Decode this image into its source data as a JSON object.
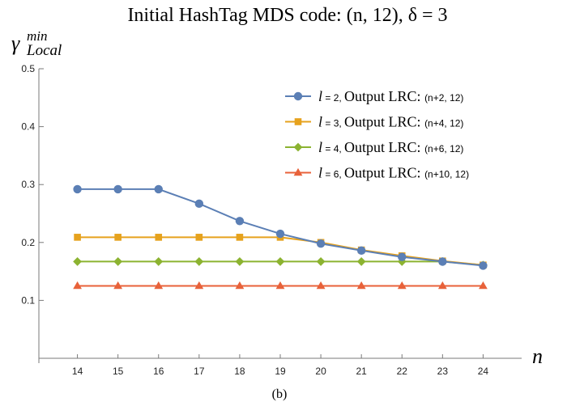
{
  "chart_data": {
    "type": "line",
    "title": "Initial HashTag MDS code: (n, 12), δ = 3",
    "ylabel": "γ",
    "ylabel_sup": "min",
    "ylabel_sub": "Local",
    "xlabel": "n",
    "caption": "(b)",
    "x": [
      14,
      15,
      16,
      17,
      18,
      19,
      20,
      21,
      22,
      23,
      24
    ],
    "xlim": [
      13.05,
      24.95
    ],
    "ylim": [
      0,
      0.5
    ],
    "yticks": [
      0.1,
      0.2,
      0.3,
      0.4,
      0.5
    ],
    "ytick_labels": [
      "0.1",
      "0.2",
      "0.3",
      "0.4",
      "0.5"
    ],
    "grid": false,
    "legend_position": "top-right",
    "series": [
      {
        "name": "l = 2, Output LRC: (n+2, 12)",
        "legend": {
          "var": "l",
          "eq": " = 2, ",
          "text": "Output LRC: ",
          "code": "(n+2, 12)"
        },
        "marker": "circle",
        "color": "#5b7fb5",
        "values": [
          0.292,
          0.292,
          0.292,
          0.267,
          0.237,
          0.215,
          0.198,
          0.186,
          0.175,
          0.167,
          0.16
        ]
      },
      {
        "name": "l = 3, Output LRC: (n+4, 12)",
        "legend": {
          "var": "l",
          "eq": " = 3, ",
          "text": "Output LRC: ",
          "code": "(n+4, 12)"
        },
        "marker": "square",
        "color": "#e6a21d",
        "values": [
          0.209,
          0.209,
          0.209,
          0.209,
          0.209,
          0.209,
          0.2,
          0.187,
          0.177,
          0.168,
          0.161
        ]
      },
      {
        "name": "l = 4, Output LRC: (n+6, 12)",
        "legend": {
          "var": "l",
          "eq": " = 4, ",
          "text": "Output LRC: ",
          "code": "(n+6, 12)"
        },
        "marker": "diamond",
        "color": "#8cb331",
        "values": [
          0.167,
          0.167,
          0.167,
          0.167,
          0.167,
          0.167,
          0.167,
          0.167,
          0.167,
          0.167,
          0.161
        ]
      },
      {
        "name": "l = 6, Output LRC: (n+10, 12)",
        "legend": {
          "var": "l",
          "eq": " = 6, ",
          "text": "Output LRC: ",
          "code": "(n+10, 12)"
        },
        "marker": "triangle",
        "color": "#e8623a",
        "values": [
          0.125,
          0.125,
          0.125,
          0.125,
          0.125,
          0.125,
          0.125,
          0.125,
          0.125,
          0.125,
          0.125
        ]
      }
    ]
  }
}
